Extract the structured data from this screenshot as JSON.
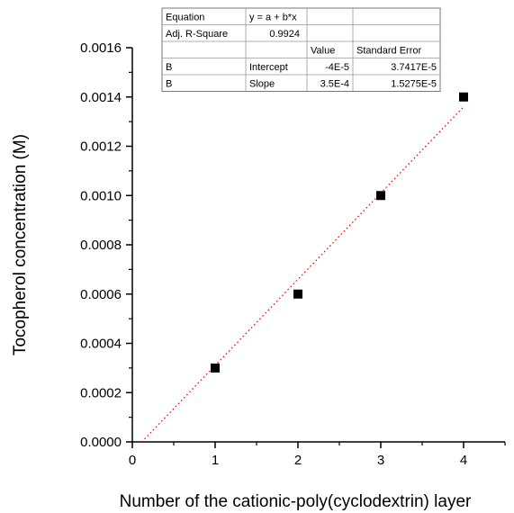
{
  "chart_data": {
    "type": "scatter",
    "title": "",
    "xlabel": "Number of the cationic-poly(cyclodextrin) layer",
    "ylabel": "Tocopherol concentration (M)",
    "xlim": [
      0,
      4.5
    ],
    "ylim": [
      0,
      0.0016
    ],
    "x_ticks": [
      0,
      1,
      2,
      3,
      4
    ],
    "x_tick_labels": [
      "0",
      "1",
      "2",
      "3",
      "4"
    ],
    "y_ticks": [
      0,
      0.0002,
      0.0004,
      0.0006,
      0.0008,
      0.001,
      0.0012,
      0.0014,
      0.0016
    ],
    "y_tick_labels": [
      "0.0000",
      "0.0002",
      "0.0004",
      "0.0006",
      "0.0008",
      "0.0010",
      "0.0012",
      "0.0014",
      "0.0016"
    ],
    "grid": false,
    "series": [
      {
        "x": [
          1,
          2,
          3,
          4
        ],
        "y": [
          0.0003,
          0.0006,
          0.001,
          0.0014
        ],
        "marker": "square",
        "color": "#000000"
      }
    ],
    "fit_line": {
      "intercept": -4e-05,
      "slope": 0.00035,
      "color": "#ff0000",
      "style": "dotted"
    },
    "fit_table": {
      "rows": [
        [
          "Equation",
          "y = a + b*x",
          "",
          ""
        ],
        [
          "Adj. R-Square",
          "0.9924",
          "",
          ""
        ],
        [
          "",
          "",
          "Value",
          "Standard Error"
        ],
        [
          "B",
          "Intercept",
          "-4E-5",
          "3.7417E-5"
        ],
        [
          "B",
          "Slope",
          "3.5E-4",
          "1.5275E-5"
        ]
      ]
    }
  }
}
